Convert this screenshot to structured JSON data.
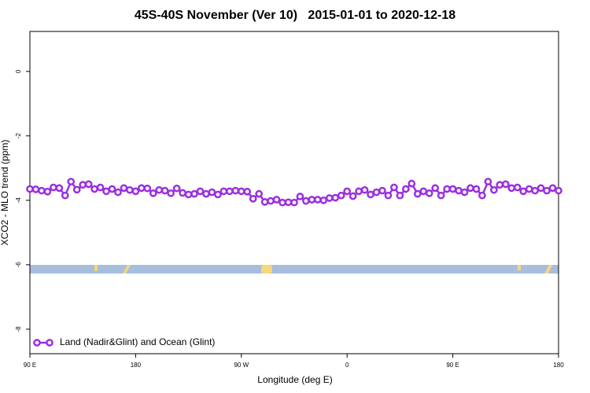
{
  "chart_data": {
    "type": "line",
    "title": "45S-40S November (Ver 10)   2015-01-01 to 2020-12-18",
    "xlabel": "Longitude (deg E)",
    "ylabel": "XCO2 - MLO trend (ppm)",
    "x": [
      90,
      95,
      100,
      105,
      110,
      115,
      120,
      125,
      130,
      135,
      140,
      145,
      150,
      155,
      160,
      165,
      170,
      175,
      180,
      185,
      190,
      195,
      200,
      205,
      210,
      215,
      220,
      225,
      230,
      235,
      240,
      245,
      250,
      255,
      260,
      265,
      270,
      275,
      280,
      285,
      290,
      295,
      300,
      305,
      310,
      315,
      320,
      325,
      330,
      335,
      340,
      345,
      350,
      355,
      360,
      365,
      370,
      375,
      380,
      385,
      390,
      395,
      400,
      405,
      410,
      415,
      420,
      425,
      430,
      435,
      440,
      445,
      450,
      455,
      460,
      465,
      470,
      475,
      480,
      485,
      490,
      495,
      500,
      505,
      510,
      515,
      520,
      525,
      530,
      535,
      540
    ],
    "series": [
      {
        "name": "Land (Nadir&Glint) and Ocean (Glint)",
        "color": "#9b2fe0",
        "values": [
          -3.65,
          -3.66,
          -3.7,
          -3.73,
          -3.6,
          -3.62,
          -3.85,
          -3.42,
          -3.67,
          -3.52,
          -3.5,
          -3.65,
          -3.6,
          -3.72,
          -3.65,
          -3.75,
          -3.62,
          -3.68,
          -3.72,
          -3.62,
          -3.63,
          -3.78,
          -3.68,
          -3.7,
          -3.78,
          -3.63,
          -3.77,
          -3.82,
          -3.8,
          -3.72,
          -3.8,
          -3.75,
          -3.82,
          -3.72,
          -3.72,
          -3.7,
          -3.72,
          -3.73,
          -3.95,
          -3.8,
          -4.05,
          -4.02,
          -3.98,
          -4.07,
          -4.06,
          -4.07,
          -3.88,
          -4.02,
          -3.98,
          -3.98,
          -4.0,
          -3.93,
          -3.92,
          -3.85,
          -3.72,
          -3.87,
          -3.72,
          -3.68,
          -3.82,
          -3.75,
          -3.7,
          -3.85,
          -3.6,
          -3.85,
          -3.65,
          -3.48,
          -3.8,
          -3.72,
          -3.78,
          -3.62,
          -3.85,
          -3.65,
          -3.65,
          -3.7,
          -3.75,
          -3.62,
          -3.65,
          -3.85,
          -3.42,
          -3.68,
          -3.52,
          -3.5,
          -3.62,
          -3.6,
          -3.72,
          -3.65,
          -3.7,
          -3.62,
          -3.7,
          -3.62,
          -3.7
        ]
      }
    ],
    "xlim": [
      90,
      540
    ],
    "xticks": [
      {
        "value": 90,
        "label": "90 E"
      },
      180,
      {
        "value": 270,
        "label": "90 W"
      },
      {
        "value": 360,
        "label": "0"
      },
      {
        "value": 450,
        "label": "90 E"
      },
      {
        "value": 540,
        "label": "180"
      }
    ],
    "ylim": [
      -8.76,
      1.24
    ],
    "yticks": [
      0,
      -2,
      -4,
      -6,
      -8
    ],
    "legend": "bottom-left",
    "grid": false
  }
}
